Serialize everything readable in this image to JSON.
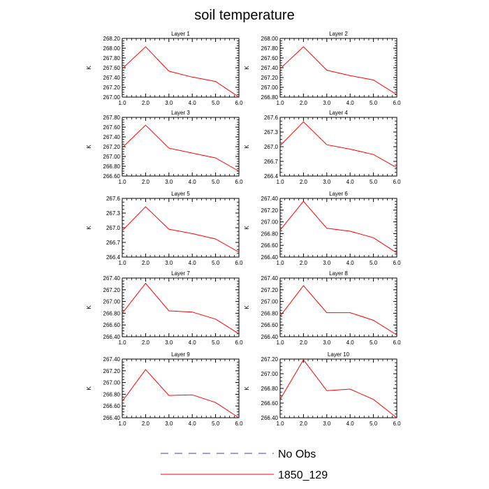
{
  "figure": {
    "title": "soil temperature",
    "legend": {
      "placement": "bottom-center",
      "entries": [
        {
          "label": "No Obs",
          "color": "#4040a0",
          "style": "dashed"
        },
        {
          "label": "1850_129",
          "color": "#ff0000",
          "style": "solid"
        }
      ]
    }
  },
  "chart_data": [
    {
      "type": "line",
      "title": "Layer 1",
      "ylabel": "K",
      "x": [
        1,
        2,
        3,
        4,
        5,
        6
      ],
      "ylim": [
        267.0,
        268.2
      ],
      "yticks": [
        "267.00",
        "267.20",
        "267.40",
        "267.60",
        "267.80",
        "268.00",
        "268.20"
      ],
      "xticks": [
        "1.0",
        "2.0",
        "3.0",
        "4.0",
        "5.0",
        "6.0"
      ],
      "series": [
        {
          "name": "1850_129",
          "values": [
            267.58,
            268.03,
            267.53,
            267.41,
            267.32,
            267.0
          ]
        }
      ]
    },
    {
      "type": "line",
      "title": "Layer 2",
      "ylabel": "K",
      "x": [
        1,
        2,
        3,
        4,
        5,
        6
      ],
      "ylim": [
        266.8,
        268.0
      ],
      "yticks": [
        "266.80",
        "267.00",
        "267.20",
        "267.40",
        "267.60",
        "267.80",
        "268.00"
      ],
      "xticks": [
        "1.0",
        "2.0",
        "3.0",
        "4.0",
        "5.0",
        "6.0"
      ],
      "series": [
        {
          "name": "1850_129",
          "values": [
            267.38,
            267.83,
            267.35,
            267.24,
            267.15,
            266.85
          ]
        }
      ]
    },
    {
      "type": "line",
      "title": "Layer 3",
      "ylabel": "K",
      "x": [
        1,
        2,
        3,
        4,
        5,
        6
      ],
      "ylim": [
        266.6,
        267.8
      ],
      "yticks": [
        "266.60",
        "266.80",
        "267.00",
        "267.20",
        "267.40",
        "267.60",
        "267.80"
      ],
      "xticks": [
        "1.0",
        "2.0",
        "3.0",
        "4.0",
        "5.0",
        "6.0"
      ],
      "series": [
        {
          "name": "1850_129",
          "values": [
            267.18,
            267.64,
            267.17,
            267.07,
            266.97,
            266.7
          ]
        }
      ]
    },
    {
      "type": "line",
      "title": "Layer 4",
      "ylabel": "K",
      "x": [
        1,
        2,
        3,
        4,
        5,
        6
      ],
      "ylim": [
        266.4,
        267.6
      ],
      "yticks": [
        "266.4",
        "266.7",
        "267.0",
        "267.3",
        "267.6"
      ],
      "xticks": [
        "1.0",
        "2.0",
        "3.0",
        "4.0",
        "5.0",
        "6.0"
      ],
      "series": [
        {
          "name": "1850_129",
          "values": [
            267.02,
            267.51,
            267.04,
            266.95,
            266.84,
            266.57
          ]
        }
      ]
    },
    {
      "type": "line",
      "title": "Layer 5",
      "ylabel": "K",
      "x": [
        1,
        2,
        3,
        4,
        5,
        6
      ],
      "ylim": [
        266.4,
        267.6
      ],
      "yticks": [
        "266.4",
        "266.7",
        "267.0",
        "267.3",
        "267.6"
      ],
      "xticks": [
        "1.0",
        "2.0",
        "3.0",
        "4.0",
        "5.0",
        "6.0"
      ],
      "series": [
        {
          "name": "1850_129",
          "values": [
            266.94,
            267.43,
            266.97,
            266.88,
            266.77,
            266.5
          ]
        }
      ]
    },
    {
      "type": "line",
      "title": "Layer 6",
      "ylabel": "K",
      "x": [
        1,
        2,
        3,
        4,
        5,
        6
      ],
      "ylim": [
        266.4,
        267.4
      ],
      "yticks": [
        "266.40",
        "266.60",
        "266.80",
        "267.00",
        "267.20",
        "267.40"
      ],
      "xticks": [
        "1.0",
        "2.0",
        "3.0",
        "4.0",
        "5.0",
        "6.0"
      ],
      "series": [
        {
          "name": "1850_129",
          "values": [
            266.86,
            267.35,
            266.89,
            266.84,
            266.73,
            266.47
          ]
        }
      ]
    },
    {
      "type": "line",
      "title": "Layer 7",
      "ylabel": "K",
      "x": [
        1,
        2,
        3,
        4,
        5,
        6
      ],
      "ylim": [
        266.4,
        267.4
      ],
      "yticks": [
        "266.40",
        "266.60",
        "266.80",
        "267.00",
        "267.20",
        "267.40"
      ],
      "xticks": [
        "1.0",
        "2.0",
        "3.0",
        "4.0",
        "5.0",
        "6.0"
      ],
      "series": [
        {
          "name": "1850_129",
          "values": [
            266.8,
            267.31,
            266.84,
            266.82,
            266.7,
            266.45
          ]
        }
      ]
    },
    {
      "type": "line",
      "title": "Layer 8",
      "ylabel": "K",
      "x": [
        1,
        2,
        3,
        4,
        5,
        6
      ],
      "ylim": [
        266.4,
        267.4
      ],
      "yticks": [
        "266.40",
        "266.60",
        "266.80",
        "267.00",
        "267.20",
        "267.40"
      ],
      "xticks": [
        "1.0",
        "2.0",
        "3.0",
        "4.0",
        "5.0",
        "6.0"
      ],
      "series": [
        {
          "name": "1850_129",
          "values": [
            266.75,
            267.27,
            266.81,
            266.81,
            266.68,
            266.43
          ]
        }
      ]
    },
    {
      "type": "line",
      "title": "Layer 9",
      "ylabel": "K",
      "x": [
        1,
        2,
        3,
        4,
        5,
        6
      ],
      "ylim": [
        266.4,
        267.4
      ],
      "yticks": [
        "266.40",
        "266.60",
        "266.80",
        "267.00",
        "267.20",
        "267.40"
      ],
      "xticks": [
        "1.0",
        "2.0",
        "3.0",
        "4.0",
        "5.0",
        "6.0"
      ],
      "series": [
        {
          "name": "1850_129",
          "values": [
            266.68,
            267.22,
            266.78,
            266.79,
            266.66,
            266.4
          ]
        }
      ]
    },
    {
      "type": "line",
      "title": "Layer 10",
      "ylabel": "K",
      "x": [
        1,
        2,
        3,
        4,
        5,
        6
      ],
      "ylim": [
        266.4,
        267.2
      ],
      "yticks": [
        "266.40",
        "266.60",
        "266.80",
        "267.00",
        "267.20"
      ],
      "xticks": [
        "1.0",
        "2.0",
        "3.0",
        "4.0",
        "5.0",
        "6.0"
      ],
      "series": [
        {
          "name": "1850_129",
          "values": [
            266.65,
            267.19,
            266.77,
            266.79,
            266.65,
            266.4
          ]
        }
      ]
    }
  ]
}
